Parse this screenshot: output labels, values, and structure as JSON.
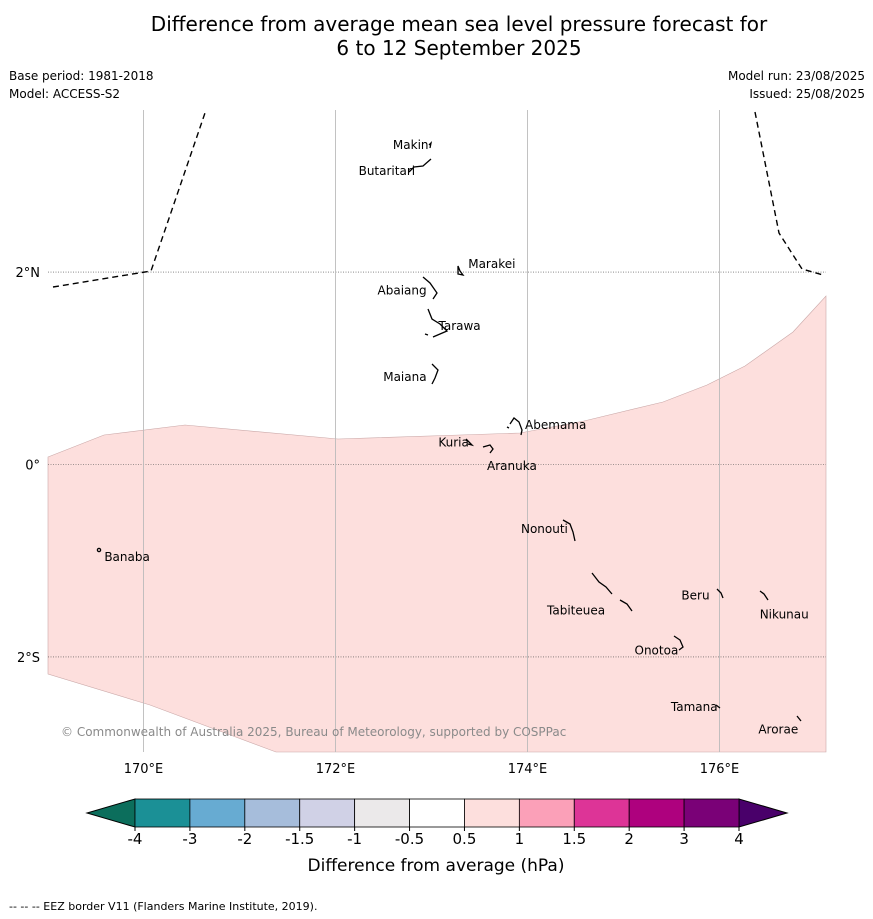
{
  "title_line1": "Difference from average mean sea level pressure forecast for",
  "title_line2": "6 to 12 September 2025",
  "meta": {
    "base_period": "Base period: 1981-2018",
    "model": "Model: ACCESS-S2",
    "model_run": "Model run: 23/08/2025",
    "issued": "Issued: 25/08/2025"
  },
  "map": {
    "lon_range": [
      169,
      177.1
    ],
    "lat_range": [
      -3,
      3.7
    ],
    "lat_gridlines": [
      {
        "lat": 2,
        "label": "2°N"
      },
      {
        "lat": 0,
        "label": "0°"
      },
      {
        "lat": -2,
        "label": "2°S"
      }
    ],
    "lon_gridlines": [
      {
        "lon": 170,
        "label": "170°E"
      },
      {
        "lon": 172,
        "label": "172°E"
      },
      {
        "lon": 174,
        "label": "174°E"
      },
      {
        "lon": 176,
        "label": "176°E"
      }
    ],
    "islands": [
      {
        "name": "Makin",
        "lon": 172.99,
        "lat": 3.33
      },
      {
        "name": "Butaritari",
        "lon": 172.85,
        "lat": 3.08
      },
      {
        "name": "Marakei",
        "lon": 173.32,
        "lat": 2.0
      },
      {
        "name": "Abaiang",
        "lon": 172.97,
        "lat": 1.82
      },
      {
        "name": "Tarawa",
        "lon": 173.0,
        "lat": 1.43
      },
      {
        "name": "Maiana",
        "lon": 172.98,
        "lat": 0.92
      },
      {
        "name": "Abemama",
        "lon": 173.86,
        "lat": 0.4
      },
      {
        "name": "Kuria",
        "lon": 173.42,
        "lat": 0.23
      },
      {
        "name": "Aranuka",
        "lon": 173.62,
        "lat": 0.17
      },
      {
        "name": "Banaba",
        "lon": 169.54,
        "lat": -0.87
      },
      {
        "name": "Nonouti",
        "lon": 174.4,
        "lat": -0.67
      },
      {
        "name": "Tabiteuea",
        "lon": 174.85,
        "lat": -1.3
      },
      {
        "name": "Beru",
        "lon": 175.98,
        "lat": -1.33
      },
      {
        "name": "Nikunau",
        "lon": 176.45,
        "lat": -1.35
      },
      {
        "name": "Onotoa",
        "lon": 175.55,
        "lat": -1.82
      },
      {
        "name": "Tamana",
        "lon": 175.98,
        "lat": -2.5
      },
      {
        "name": "Arorae",
        "lon": 176.82,
        "lat": -2.65
      }
    ],
    "anomaly_region": {
      "category": "0.5 to 1",
      "color": "#fddfdd"
    },
    "copyright": "© Commonwealth of Australia 2025, Bureau of Meteorology, supported by COSPPac"
  },
  "colorbar": {
    "title": "Difference from average (hPa)",
    "ticks": [
      "-4",
      "-3",
      "-2",
      "-1.5",
      "-1",
      "-0.5",
      "0.5",
      "1",
      "1.5",
      "2",
      "3",
      "4"
    ],
    "colors": [
      "#1b9096",
      "#67abd2",
      "#a6bddb",
      "#d0d1e6",
      "#ebe9ea",
      "#ffffff",
      "#fddfdd",
      "#fba0b8",
      "#dd3497",
      "#ae017e",
      "#7a0177"
    ],
    "under_color": "#0c6e5c",
    "over_color": "#49006a"
  },
  "footer": "--  --  -- EEZ border V11 (Flanders Marine Institute, 2019)."
}
